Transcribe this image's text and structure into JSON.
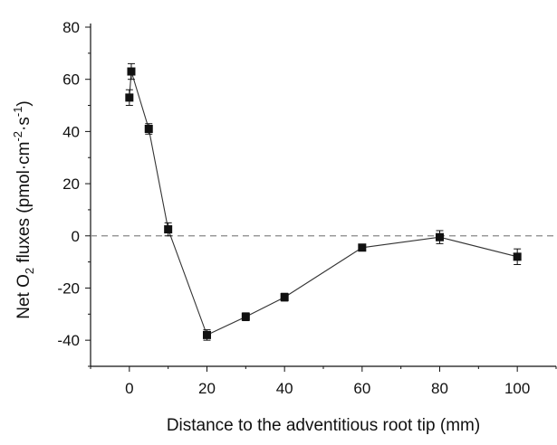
{
  "chart_data": {
    "type": "scatter",
    "xlabel": "Distance to the adventitious root tip (mm)",
    "ylabel": {
      "prefix": "Net O",
      "subscript": "2",
      "middle": " fluxes (pmol·cm",
      "sup1": "-2",
      "mid2": "·s",
      "sup2": "-1",
      "suffix": ")"
    },
    "xlim": [
      -10,
      110
    ],
    "ylim": [
      -50,
      80
    ],
    "xticks": [
      0,
      20,
      40,
      60,
      80,
      100
    ],
    "yticks": [
      -40,
      -20,
      0,
      20,
      40,
      60,
      80
    ],
    "reference_line": {
      "y": 0,
      "style": "dashed"
    },
    "series": [
      {
        "marker": "square",
        "line": "solid",
        "points": [
          {
            "x": 0,
            "y": 53,
            "err": 3
          },
          {
            "x": 0.5,
            "y": 63,
            "err": 3
          },
          {
            "x": 5,
            "y": 41,
            "err": 2
          },
          {
            "x": 10,
            "y": 2.5,
            "err": 2.5
          },
          {
            "x": 20,
            "y": -38,
            "err": 2
          },
          {
            "x": 30,
            "y": -31,
            "err": 1.5
          },
          {
            "x": 40,
            "y": -23.5,
            "err": 1.5
          },
          {
            "x": 60,
            "y": -4.5,
            "err": 1
          },
          {
            "x": 80,
            "y": -0.5,
            "err": 2.5
          },
          {
            "x": 100,
            "y": -8,
            "err": 3
          }
        ]
      }
    ],
    "colors": {
      "line": "#333333",
      "marker": "#111111",
      "reference": "#888888"
    }
  }
}
